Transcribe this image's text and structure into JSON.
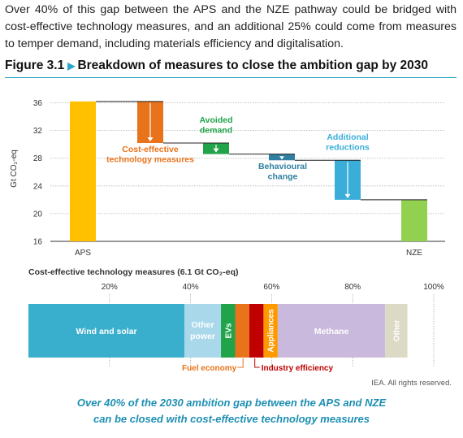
{
  "intro_text": "Over 40% of this gap between the APS and the NZE pathway could be bridged with cost-effective technology measures, and an additional 25% could come from measures to temper demand, including materials efficiency and digitalisation.",
  "figure": {
    "number": "Figure 3.1",
    "title": "Breakdown of measures to close the ambition gap by 2030",
    "note": "IEA. All rights reserved.",
    "caption_line1": "Over 40% of the 2030 ambition gap between the APS and NZE",
    "caption_line2": "can be closed with cost-effective technology measures"
  },
  "chart_data": [
    {
      "type": "bar",
      "subtype": "waterfall",
      "ylabel": "Gt CO₂-eq",
      "ylim": [
        16,
        37
      ],
      "yticks": [
        16,
        20,
        24,
        28,
        32,
        36
      ],
      "grid": true,
      "categories": [
        "APS",
        "Cost-effective technology measures",
        "Avoided demand",
        "Behavioural change",
        "Additional reductions",
        "NZE"
      ],
      "axis_labels": [
        "APS",
        "NZE"
      ],
      "steps": [
        {
          "label": "APS",
          "start": 16,
          "end": 36.2,
          "kind": "total",
          "color": "#ffc000"
        },
        {
          "label": "Cost-effective technology measures",
          "start": 36.2,
          "end": 30.2,
          "kind": "decrease",
          "color": "#e8731a"
        },
        {
          "label": "Avoided demand",
          "start": 30.2,
          "end": 28.6,
          "kind": "decrease",
          "color": "#21a34a"
        },
        {
          "label": "Behavioural change",
          "start": 28.6,
          "end": 27.7,
          "kind": "decrease",
          "color": "#2f7fa0"
        },
        {
          "label": "Additional reductions",
          "start": 27.7,
          "end": 22.0,
          "kind": "decrease",
          "color": "#3aaed8"
        },
        {
          "label": "NZE",
          "start": 16,
          "end": 22.0,
          "kind": "total",
          "color": "#92d050"
        }
      ],
      "annotation_colors": {
        "Cost-effective technology measures": "#e8731a",
        "Avoided demand": "#21a34a",
        "Behavioural change": "#2f7fa0",
        "Additional reductions": "#3aaed8"
      }
    },
    {
      "type": "bar",
      "subtype": "stacked-100",
      "title": "Cost-effective technology measures (6.1 Gt CO₂-eq)",
      "xlim": [
        0,
        100
      ],
      "xticks": [
        20,
        40,
        60,
        80,
        100
      ],
      "xtick_labels": [
        "20%",
        "40%",
        "60%",
        "80%",
        "100%"
      ],
      "segments": [
        {
          "label": "Wind and solar",
          "value": 38.5,
          "color": "#3aaecd",
          "text_color": "#ffffff"
        },
        {
          "label": "Other power",
          "value": 9.0,
          "color": "#a9d8ea",
          "text_color": "#ffffff"
        },
        {
          "label": "EVs",
          "value": 3.5,
          "color": "#21a34a",
          "text_color": "#ffffff"
        },
        {
          "label": "Fuel economy",
          "value": 3.5,
          "color": "#e8731a",
          "text_color": "#ffffff"
        },
        {
          "label": "Industry efficiency",
          "value": 3.5,
          "color": "#c00000",
          "text_color": "#ffffff"
        },
        {
          "label": "Appliances",
          "value": 3.5,
          "color": "#ff9900",
          "text_color": "#ffffff"
        },
        {
          "label": "Methane",
          "value": 26.5,
          "color": "#c9b9dc",
          "text_color": "#ffffff"
        },
        {
          "label": "Other",
          "value": 5.5,
          "color": "#dcdac5",
          "text_color": "#ffffff"
        }
      ],
      "callouts": [
        {
          "label": "Fuel economy",
          "color": "#e8731a"
        },
        {
          "label": "Industry efficiency",
          "color": "#c00000"
        }
      ]
    }
  ]
}
